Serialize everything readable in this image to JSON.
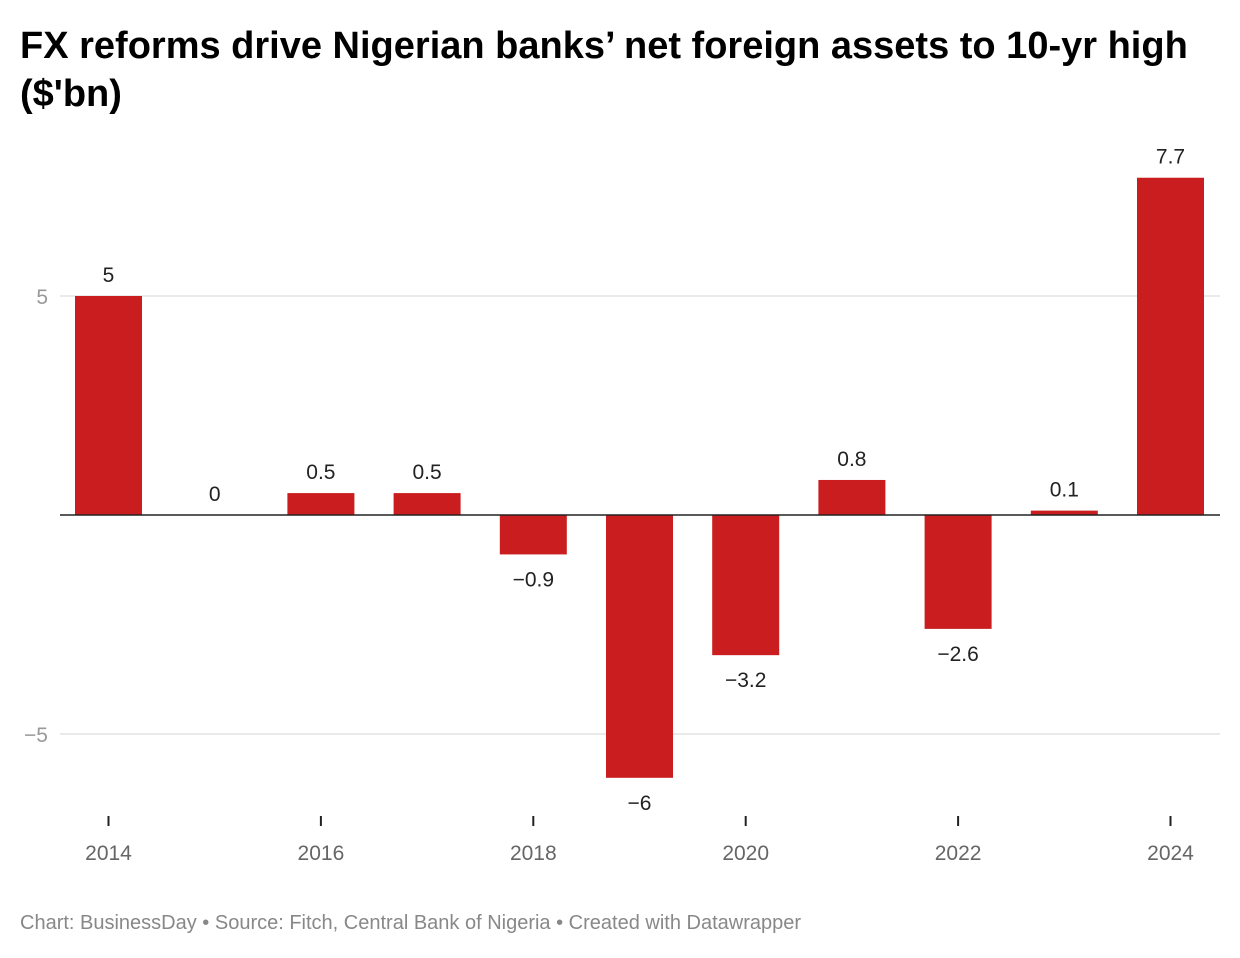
{
  "title": "FX reforms drive Nigerian banks’ net foreign assets to 10-yr high ($'bn)",
  "footer": "Chart: BusinessDay • Source: Fitch, Central Bank of Nigeria • Created with Datawrapper",
  "chart_data": {
    "type": "bar",
    "title": "FX reforms drive Nigerian banks’ net foreign assets to 10-yr high ($'bn)",
    "categories": [
      "2014",
      "2015",
      "2016",
      "2017",
      "2018",
      "2019",
      "2020",
      "2021",
      "2022",
      "2023",
      "2024"
    ],
    "values": [
      5,
      0,
      0.5,
      0.5,
      -0.9,
      -6,
      -3.2,
      0.8,
      -2.6,
      0.1,
      7.7
    ],
    "data_labels": [
      "5",
      "0",
      "0.5",
      "0.5",
      "−0.9",
      "−6",
      "−3.2",
      "0.8",
      "−2.6",
      "0.1",
      "7.7"
    ],
    "x_tick_labels": [
      "2014",
      "2016",
      "2018",
      "2020",
      "2022",
      "2024"
    ],
    "y_ticks": [
      5,
      -5
    ],
    "y_tick_labels": [
      "5",
      "−5"
    ],
    "ylim": [
      -6.9,
      8.3
    ],
    "grid": true,
    "bar_color": "#c91d1f",
    "xlabel": "",
    "ylabel": ""
  }
}
